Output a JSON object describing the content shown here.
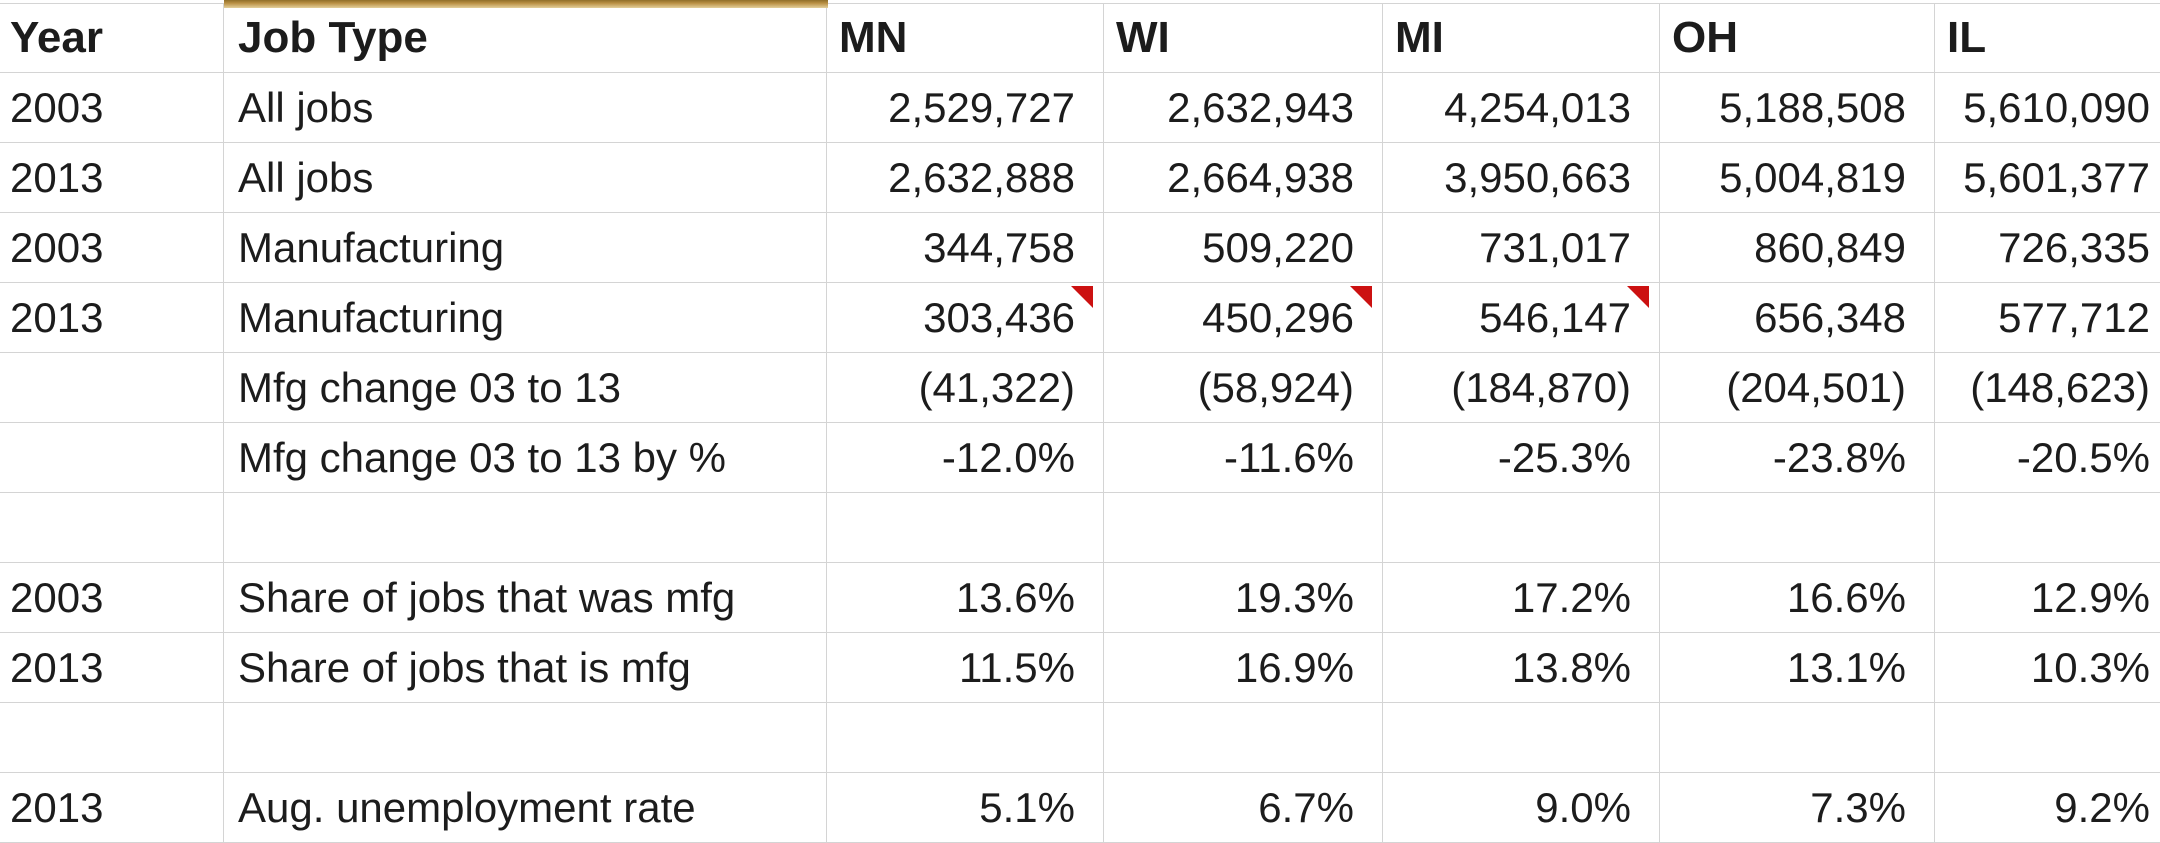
{
  "sheet": {
    "header": [
      "Year",
      "Job Type",
      "MN",
      "WI",
      "MI",
      "OH",
      "IL"
    ],
    "rows": [
      [
        "2003",
        "All jobs",
        "2,529,727",
        "2,632,943",
        "4,254,013",
        "5,188,508",
        "5,610,090"
      ],
      [
        "2013",
        "All jobs",
        "2,632,888",
        "2,664,938",
        "3,950,663",
        "5,004,819",
        "5,601,377"
      ],
      [
        "2003",
        "Manufacturing",
        "344,758",
        "509,220",
        "731,017",
        "860,849",
        "726,335"
      ],
      [
        "2013",
        "Manufacturing",
        "303,436",
        "450,296",
        "546,147",
        "656,348",
        "577,712"
      ],
      [
        "",
        "Mfg change 03 to 13",
        "(41,322)",
        "(58,924)",
        "(184,870)",
        "(204,501)",
        "(148,623)"
      ],
      [
        "",
        "Mfg change 03 to 13 by %",
        "-12.0%",
        "-11.6%",
        "-25.3%",
        "-23.8%",
        "-20.5%"
      ],
      [
        "",
        "",
        "",
        "",
        "",
        "",
        ""
      ],
      [
        "2003",
        "Share of jobs that was mfg",
        "13.6%",
        "19.3%",
        "17.2%",
        "16.6%",
        "12.9%"
      ],
      [
        "2013",
        "Share of jobs that is mfg",
        "11.5%",
        "16.9%",
        "13.8%",
        "13.1%",
        "10.3%"
      ],
      [
        "",
        "",
        "",
        "",
        "",
        "",
        ""
      ],
      [
        "2013",
        "Aug. unemployment rate",
        "5.1%",
        "6.7%",
        "9.0%",
        "7.3%",
        "9.2%"
      ]
    ],
    "comment_cells": [
      [
        3,
        2
      ],
      [
        3,
        3
      ],
      [
        3,
        4
      ]
    ],
    "colors": {
      "gold_border": "#b99044",
      "comment_red": "#cc1111",
      "gridline": "#d4d4d4"
    }
  }
}
